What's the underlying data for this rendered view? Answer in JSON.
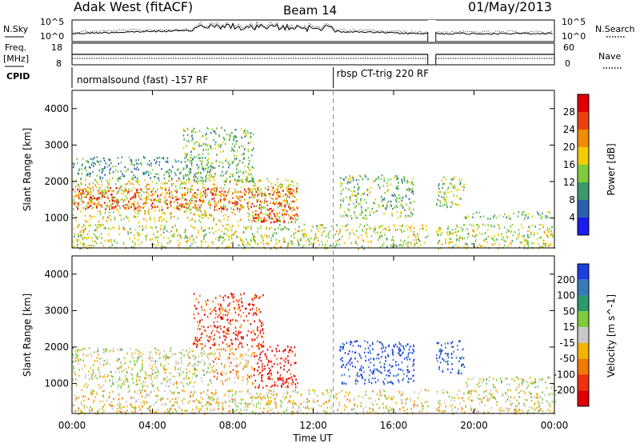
{
  "header": {
    "station": "Adak West (fitACF)",
    "beam": "Beam 14",
    "date": "01/May/2013"
  },
  "top_panels": {
    "nsky_label": "N.Sky",
    "nsky_ticks": [
      "10^5",
      "10^0"
    ],
    "nsearch_label": "N.Search",
    "nsearch_ticks": [
      "10^5",
      "10^0"
    ],
    "freq_label": "Freq.",
    "freq_unit": "[MHz]",
    "freq_ticks": [
      "18",
      "8"
    ],
    "nave_label": "Nave",
    "nave_ticks": [
      "60",
      "0"
    ],
    "cpid_label": "CPID",
    "cpid_segments": [
      {
        "label": "normalsound (fast) -157 RF",
        "start_hour": 0
      },
      {
        "label": "rbsp CT-trig 220 RF",
        "start_hour": 13
      }
    ],
    "data_gap_hours": [
      17.7,
      18.1
    ]
  },
  "chart_data": [
    {
      "type": "heatmap",
      "name": "power-panel",
      "ylabel": "Slant Range [km]",
      "xlabel": "",
      "x_range_hours": [
        0,
        24
      ],
      "ylim": [
        180,
        4500
      ],
      "y_ticks": [
        1000,
        2000,
        3000,
        4000
      ],
      "colorbar": {
        "label": "Power [dB]",
        "ticks": [
          "4",
          "8",
          "12",
          "16",
          "20",
          "24",
          "28"
        ],
        "colors": [
          "#1c1cf0",
          "#2c5fb0",
          "#3a9a6a",
          "#7ccc3c",
          "#f2cc00",
          "#f28c00",
          "#f04010",
          "#e00000"
        ]
      },
      "regions": [
        {
          "start": 0.0,
          "end": 11.2,
          "lo": 1250,
          "hi": 1850,
          "level": 0.88
        },
        {
          "start": 0.0,
          "end": 11.2,
          "lo": 900,
          "hi": 2100,
          "level": 0.55
        },
        {
          "start": 0.0,
          "end": 7.0,
          "lo": 2100,
          "hi": 2700,
          "level": 0.3
        },
        {
          "start": 5.5,
          "end": 9.0,
          "lo": 2000,
          "hi": 3500,
          "level": 0.4
        },
        {
          "start": 9.0,
          "end": 11.2,
          "lo": 900,
          "hi": 1300,
          "level": 0.92
        },
        {
          "start": 13.3,
          "end": 17.0,
          "lo": 1000,
          "hi": 2200,
          "level": 0.4
        },
        {
          "start": 18.0,
          "end": 19.5,
          "lo": 1300,
          "hi": 2200,
          "level": 0.45
        },
        {
          "start": 19.5,
          "end": 24.0,
          "lo": 1000,
          "hi": 1200,
          "level": 0.38
        },
        {
          "start": 0.0,
          "end": 24.0,
          "lo": 180,
          "hi": 850,
          "level": 0.5
        }
      ]
    },
    {
      "type": "heatmap",
      "name": "velocity-panel",
      "ylabel": "Slant Range [km]",
      "xlabel": "Time UT",
      "x_range_hours": [
        0,
        24
      ],
      "ylim": [
        180,
        4500
      ],
      "y_ticks": [
        1000,
        2000,
        3000,
        4000
      ],
      "x_ticks": [
        "00:00",
        "04:00",
        "08:00",
        "12:00",
        "16:00",
        "20:00",
        "00:00"
      ],
      "colorbar": {
        "label": "Velocity [m s^-1]",
        "ticks": [
          "200",
          "100",
          "50",
          "15",
          "-15",
          "-50",
          "-100",
          "-200"
        ],
        "colors": [
          "#1c40e0",
          "#3a7ab8",
          "#2c9a6a",
          "#7ccc3c",
          "#c8c8c8",
          "#f2b400",
          "#f27800",
          "#f03010",
          "#e00000"
        ]
      },
      "regions": [
        {
          "start": 0.0,
          "end": 7.0,
          "lo": 900,
          "hi": 2000,
          "level": 0.5
        },
        {
          "start": 7.0,
          "end": 9.0,
          "lo": 1000,
          "hi": 2000,
          "level": 0.65
        },
        {
          "start": 9.0,
          "end": 11.2,
          "lo": 900,
          "hi": 2100,
          "level": 0.92
        },
        {
          "start": 6.0,
          "end": 9.5,
          "lo": 2000,
          "hi": 3500,
          "level": 0.85
        },
        {
          "start": 13.3,
          "end": 17.0,
          "lo": 1000,
          "hi": 2200,
          "level": 0.05
        },
        {
          "start": 18.0,
          "end": 19.5,
          "lo": 1300,
          "hi": 2200,
          "level": 0.1
        },
        {
          "start": 19.5,
          "end": 24.0,
          "lo": 900,
          "hi": 1200,
          "level": 0.5
        },
        {
          "start": 0.0,
          "end": 24.0,
          "lo": 180,
          "hi": 850,
          "level": 0.55
        }
      ]
    }
  ]
}
